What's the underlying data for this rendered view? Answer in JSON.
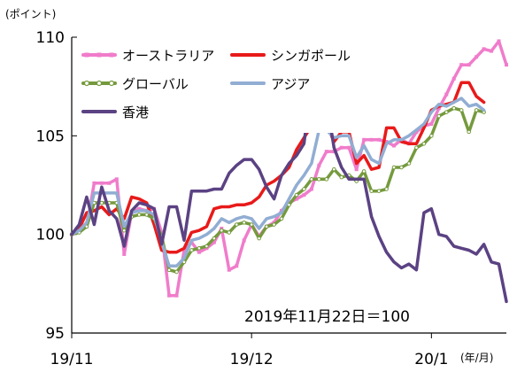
{
  "chart_data": {
    "type": "line",
    "y_unit_label": "(ポイント)",
    "x_unit_label": "(年/月)",
    "annotation": "2019年11月22日＝100",
    "ylim": [
      95,
      110
    ],
    "y_ticks": [
      95,
      100,
      105,
      110
    ],
    "x_tick_labels": [
      {
        "label": "19/11",
        "index": 0
      },
      {
        "label": "19/12",
        "index": 24
      },
      {
        "label": "20/1",
        "index": 48
      }
    ],
    "grid": false,
    "legend_placement": "top-left",
    "series": [
      {
        "name": "オーストラリア",
        "color": "#f07ccb",
        "marker": "square",
        "values": [
          100.0,
          100.2,
          100.4,
          102.6,
          102.6,
          102.6,
          102.8,
          99.0,
          101.1,
          101.3,
          101.2,
          101.3,
          100.1,
          96.9,
          96.9,
          99.2,
          99.6,
          99.1,
          99.3,
          99.6,
          100.3,
          98.2,
          98.4,
          99.7,
          100.5,
          99.9,
          100.4,
          100.6,
          101.2,
          101.6,
          101.8,
          102.0,
          102.3,
          103.5,
          104.2,
          104.2,
          104.4,
          104.4,
          103.3,
          104.8,
          104.8,
          104.8,
          104.7,
          104.5,
          104.8,
          104.6,
          105.2,
          105.5,
          105.6,
          106.4,
          107.1,
          107.9,
          108.6,
          108.6,
          109.0,
          109.4,
          109.3,
          109.8,
          108.6
        ]
      },
      {
        "name": "シンガポール",
        "color": "#e81a1a",
        "marker": "none",
        "values": [
          100.0,
          100.3,
          101.1,
          101.2,
          101.4,
          101.0,
          101.3,
          100.8,
          101.9,
          101.8,
          101.6,
          100.5,
          99.2,
          99.1,
          99.1,
          99.3,
          100.1,
          100.2,
          100.4,
          101.3,
          101.4,
          101.4,
          101.5,
          101.5,
          101.6,
          101.9,
          102.5,
          102.7,
          103.0,
          103.4,
          104.3,
          104.9,
          105.5,
          105.6,
          105.6,
          104.7,
          105.2,
          105.2,
          103.6,
          104.0,
          103.3,
          103.4,
          105.4,
          105.4,
          104.7,
          104.6,
          104.6,
          105.4,
          106.3,
          106.5,
          106.6,
          106.7,
          107.7,
          107.7,
          107.0,
          106.7
        ]
      },
      {
        "name": "グローバル",
        "color": "#759a3d",
        "marker": "circle",
        "values": [
          100.0,
          100.1,
          100.4,
          101.6,
          101.6,
          101.6,
          101.6,
          100.2,
          100.9,
          101.0,
          101.0,
          100.8,
          99.9,
          98.2,
          98.1,
          98.6,
          99.2,
          99.3,
          99.4,
          99.8,
          100.2,
          100.1,
          100.5,
          100.6,
          100.5,
          99.8,
          100.4,
          100.5,
          100.8,
          101.5,
          102.0,
          102.3,
          102.8,
          102.8,
          102.8,
          103.3,
          102.9,
          103.0,
          102.7,
          103.2,
          102.2,
          102.2,
          102.3,
          103.4,
          103.4,
          103.6,
          104.4,
          104.6,
          105.0,
          106.0,
          106.2,
          106.4,
          106.3,
          105.2,
          106.3,
          106.2
        ]
      },
      {
        "name": "アジア",
        "color": "#91add3",
        "marker": "none",
        "values": [
          100.0,
          100.2,
          100.6,
          102.1,
          102.1,
          102.1,
          102.1,
          100.4,
          101.1,
          101.2,
          101.2,
          101.0,
          99.6,
          98.4,
          98.4,
          98.8,
          99.7,
          99.8,
          100.0,
          100.3,
          100.8,
          100.6,
          100.8,
          100.9,
          100.8,
          100.3,
          100.8,
          100.9,
          101.1,
          101.8,
          102.5,
          103.0,
          103.6,
          105.3,
          105.3,
          104.9,
          105.0,
          105.0,
          103.9,
          104.5,
          103.8,
          103.6,
          104.6,
          104.8,
          104.8,
          105.0,
          105.3,
          105.6,
          106.2,
          106.6,
          106.5,
          106.7,
          106.9,
          106.5,
          106.6,
          106.3
        ]
      },
      {
        "name": "香港",
        "color": "#5b4283",
        "marker": "none",
        "values": [
          100.0,
          100.5,
          101.9,
          100.5,
          102.4,
          101.2,
          100.8,
          99.4,
          101.2,
          101.6,
          101.5,
          101.3,
          99.5,
          101.4,
          101.4,
          99.7,
          102.2,
          102.2,
          102.2,
          102.3,
          102.3,
          103.1,
          103.5,
          103.8,
          103.8,
          103.3,
          102.4,
          101.8,
          103.0,
          103.6,
          104.0,
          104.6,
          107.7,
          107.4,
          106.8,
          104.4,
          103.4,
          102.8,
          102.8,
          102.8,
          100.9,
          99.9,
          99.1,
          98.6,
          98.3,
          98.5,
          98.2,
          101.1,
          101.3,
          100.0,
          99.9,
          99.4,
          99.3,
          99.2,
          99.0,
          99.5,
          98.6,
          98.5,
          96.6
        ]
      }
    ]
  }
}
